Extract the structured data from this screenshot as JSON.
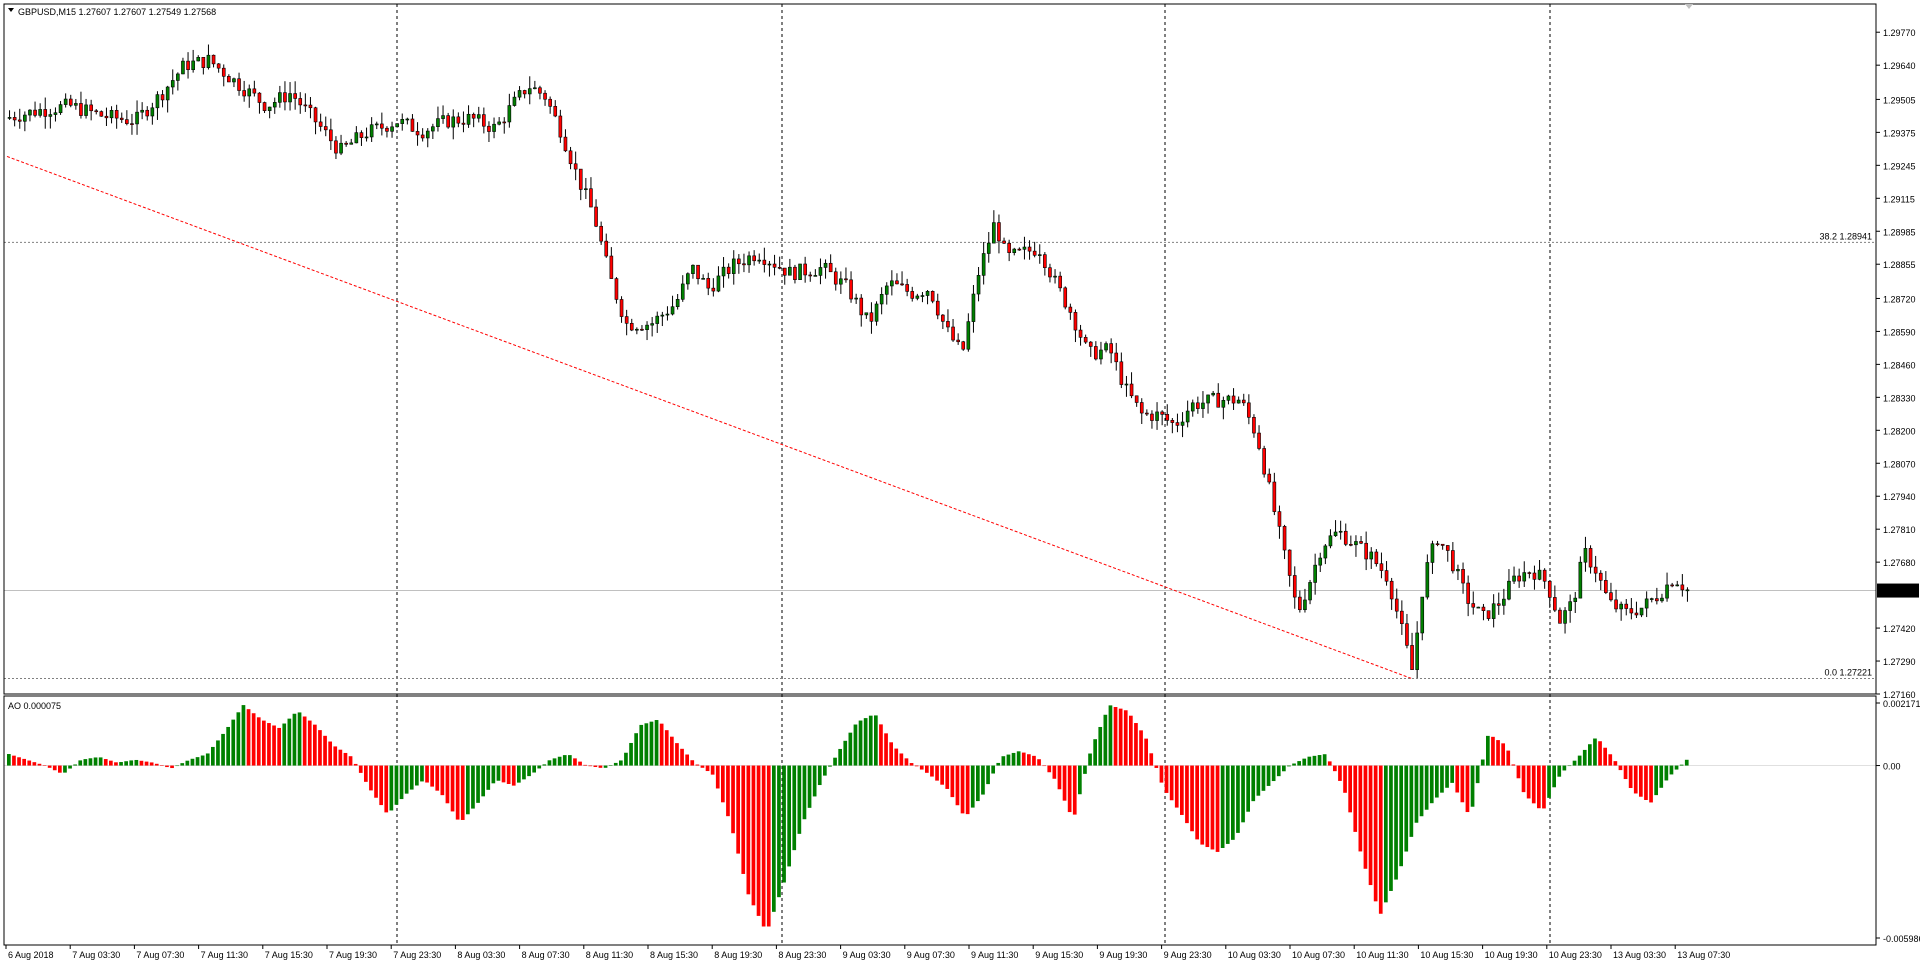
{
  "symbol_line": "GBPUSD,M15  1.27607 1.27607 1.27549 1.27568",
  "symbol": "GBPUSD,M15",
  "ohlc": {
    "open": "1.27607",
    "high": "1.27607",
    "low": "1.27549",
    "close": "1.27568"
  },
  "current_price": "1.27568",
  "colors": {
    "bull": "#008000",
    "bear": "#ff0000",
    "candle_body": "#000000",
    "grid": "#000000",
    "trendline": "#ff0000",
    "bid_line": "#c0c0c0",
    "price_tag_bg": "#000000",
    "price_tag_text": "#ffffff"
  },
  "chart_data": [
    {
      "type": "candlestick",
      "title": "GBPUSD,M15",
      "ylim": [
        1.2716,
        1.2983
      ],
      "y_ticks": [
        "1.29770",
        "1.29640",
        "1.29505",
        "1.29375",
        "1.29245",
        "1.29115",
        "1.28985",
        "1.28855",
        "1.28720",
        "1.28590",
        "1.28460",
        "1.28330",
        "1.28200",
        "1.28070",
        "1.27940",
        "1.27810",
        "1.27680",
        "1.27568",
        "1.27420",
        "1.27290",
        "1.27160"
      ],
      "x_ticks": [
        "6 Aug 2018",
        "7 Aug 03:30",
        "7 Aug 07:30",
        "7 Aug 11:30",
        "7 Aug 15:30",
        "7 Aug 19:30",
        "7 Aug 23:30",
        "8 Aug 03:30",
        "8 Aug 07:30",
        "8 Aug 11:30",
        "8 Aug 15:30",
        "8 Aug 19:30",
        "8 Aug 23:30",
        "9 Aug 03:30",
        "9 Aug 07:30",
        "9 Aug 11:30",
        "9 Aug 15:30",
        "9 Aug 19:30",
        "9 Aug 23:30",
        "10 Aug 03:30",
        "10 Aug 07:30",
        "10 Aug 11:30",
        "10 Aug 15:30",
        "10 Aug 19:30",
        "10 Aug 23:30",
        "13 Aug 03:30",
        "13 Aug 07:30"
      ],
      "path": [
        [
          0,
          1.2943
        ],
        [
          20,
          1.2946
        ],
        [
          40,
          1.2948
        ],
        [
          60,
          1.2944
        ],
        [
          80,
          1.2942
        ],
        [
          95,
          1.2952
        ],
        [
          110,
          1.2964
        ],
        [
          125,
          1.2966
        ],
        [
          140,
          1.2958
        ],
        [
          160,
          1.2948
        ],
        [
          175,
          1.2953
        ],
        [
          190,
          1.2942
        ],
        [
          205,
          1.293
        ],
        [
          220,
          1.2937
        ],
        [
          240,
          1.2942
        ],
        [
          255,
          1.2938
        ],
        [
          270,
          1.2942
        ],
        [
          285,
          1.2943
        ],
        [
          300,
          1.2939
        ],
        [
          310,
          1.2948
        ],
        [
          320,
          1.2956
        ],
        [
          330,
          1.2952
        ],
        [
          340,
          1.2938
        ],
        [
          350,
          1.292
        ],
        [
          360,
          1.2905
        ],
        [
          370,
          1.288
        ],
        [
          380,
          1.2862
        ],
        [
          395,
          1.2862
        ],
        [
          410,
          1.287
        ],
        [
          420,
          1.2884
        ],
        [
          430,
          1.2876
        ],
        [
          445,
          1.2885
        ],
        [
          460,
          1.289
        ],
        [
          480,
          1.2882
        ],
        [
          500,
          1.2884
        ],
        [
          515,
          1.2876
        ],
        [
          528,
          1.2862
        ],
        [
          540,
          1.2878
        ],
        [
          555,
          1.2874
        ],
        [
          565,
          1.2876
        ],
        [
          575,
          1.286
        ],
        [
          585,
          1.285
        ],
        [
          595,
          1.2882
        ],
        [
          605,
          1.2902
        ],
        [
          612,
          1.2888
        ],
        [
          622,
          1.289
        ],
        [
          632,
          1.2892
        ],
        [
          642,
          1.2878
        ],
        [
          652,
          1.2866
        ],
        [
          662,
          1.285
        ],
        [
          675,
          1.2852
        ],
        [
          685,
          1.2836
        ],
        [
          695,
          1.2826
        ],
        [
          705,
          1.2826
        ],
        [
          715,
          1.2822
        ],
        [
          725,
          1.283
        ],
        [
          740,
          1.2832
        ],
        [
          755,
          1.2832
        ],
        [
          765,
          1.2818
        ],
        [
          775,
          1.279
        ],
        [
          782,
          1.277
        ],
        [
          790,
          1.2748
        ],
        [
          797,
          1.276
        ],
        [
          805,
          1.2775
        ],
        [
          815,
          1.278
        ],
        [
          825,
          1.2775
        ],
        [
          835,
          1.277
        ],
        [
          845,
          1.2762
        ],
        [
          852,
          1.2745
        ],
        [
          860,
          1.2725
        ],
        [
          867,
          1.2762
        ],
        [
          875,
          1.2778
        ],
        [
          883,
          1.277
        ],
        [
          893,
          1.2754
        ],
        [
          903,
          1.2746
        ],
        [
          913,
          1.2752
        ],
        [
          923,
          1.2762
        ],
        [
          933,
          1.2765
        ],
        [
          942,
          1.276
        ],
        [
          950,
          1.2745
        ],
        [
          958,
          1.2752
        ],
        [
          965,
          1.2772
        ],
        [
          972,
          1.2765
        ],
        [
          980,
          1.2752
        ],
        [
          990,
          1.2748
        ],
        [
          1000,
          1.275
        ],
        [
          1010,
          1.2755
        ],
        [
          1020,
          1.2762
        ],
        [
          1028,
          1.2757
        ]
      ],
      "annotations": [
        {
          "text": "38.2 1.28941",
          "value": 1.28941
        },
        {
          "text": "0.0 1.27221",
          "value": 1.27221
        }
      ],
      "trendline": {
        "from": [
          0,
          1.2928
        ],
        "to": [
          858,
          1.27221
        ]
      }
    },
    {
      "type": "histogram",
      "title": "AO 0.000075",
      "label": "AO 0.000075",
      "ylim": [
        -0.005986,
        0.002171
      ],
      "y_ticks": [
        "0.002171",
        "0.00",
        "-0.005986"
      ],
      "values": [
        0.0004,
        0.0002,
        0.0,
        -0.0003,
        0.0002,
        0.0003,
        0.0001,
        0.0002,
        0.0001,
        -0.0001,
        0.0002,
        0.0004,
        0.0012,
        0.0021,
        0.0016,
        0.0013,
        0.0019,
        0.0014,
        0.0007,
        0.0003,
        -0.0008,
        -0.0017,
        -0.001,
        -0.0005,
        -0.001,
        -0.002,
        -0.0013,
        -0.0005,
        -0.0007,
        -0.0003,
        0.0002,
        0.0004,
        0.0,
        -0.0001,
        0.0002,
        0.0014,
        0.0016,
        0.0008,
        0.0001,
        -0.0003,
        -0.002,
        -0.0045,
        -0.0058,
        -0.004,
        -0.002,
        -0.0006,
        0.0005,
        0.0015,
        0.0018,
        0.0007,
        0.0001,
        -0.0003,
        -0.0008,
        -0.0018,
        -0.001,
        0.0003,
        0.0005,
        0.0003,
        -0.0005,
        -0.0019,
        0.0006,
        0.0021,
        0.0019,
        0.001,
        -0.0008,
        -0.0017,
        -0.0027,
        -0.003,
        -0.0025,
        -0.0012,
        -0.0006,
        0.0,
        0.0003,
        0.0004,
        -0.0008,
        -0.0032,
        -0.0052,
        -0.0038,
        -0.002,
        -0.0012,
        -0.0006,
        -0.0018,
        0.0011,
        0.0007,
        -0.001,
        -0.0016,
        -0.0003,
        0.0003,
        0.001,
        0.0002,
        -0.0009,
        -0.0013,
        -0.0004,
        0.0002
      ]
    }
  ]
}
